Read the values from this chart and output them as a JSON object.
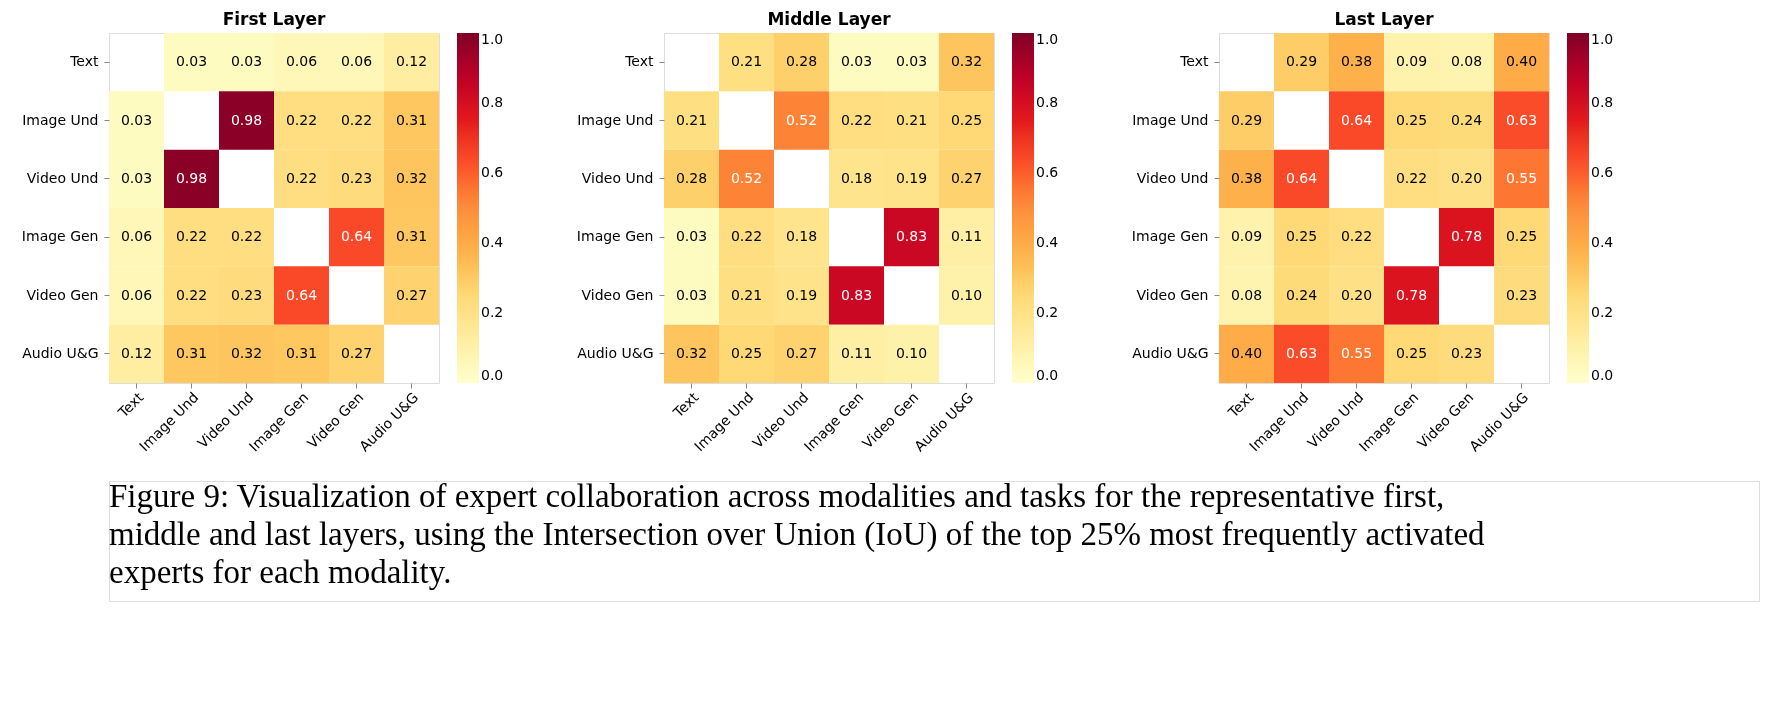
{
  "chart_data": [
    {
      "type": "heatmap",
      "title": "First Layer",
      "categories": [
        "Text",
        "Image Und",
        "Video Und",
        "Image Gen",
        "Video Gen",
        "Audio U&G"
      ],
      "y_categories": [
        "Text",
        "Image Und",
        "Video Und",
        "Image Gen",
        "Video Gen",
        "Audio U&G"
      ],
      "cells": [
        [
          null,
          0.03,
          0.03,
          0.06,
          0.06,
          0.12
        ],
        [
          0.03,
          null,
          0.98,
          0.22,
          0.22,
          0.31
        ],
        [
          0.03,
          0.98,
          null,
          0.22,
          0.23,
          0.32
        ],
        [
          0.06,
          0.22,
          0.22,
          null,
          0.64,
          0.31
        ],
        [
          0.06,
          0.22,
          0.23,
          0.64,
          null,
          0.27
        ],
        [
          0.12,
          0.31,
          0.32,
          0.31,
          0.27,
          null
        ]
      ],
      "cell_labels": [
        [
          null,
          "0.03",
          "0.03",
          "0.06",
          "0.06",
          "0.12"
        ],
        [
          "0.03",
          null,
          "0.98",
          "0.22",
          "0.22",
          "0.31"
        ],
        [
          "0.03",
          "0.98",
          null,
          "0.22",
          "0.23",
          "0.32"
        ],
        [
          "0.06",
          "0.22",
          "0.22",
          null,
          "0.64",
          "0.31"
        ],
        [
          "0.06",
          "0.22",
          "0.23",
          "0.64",
          null,
          "0.27"
        ],
        [
          "0.12",
          "0.31",
          "0.32",
          "0.31",
          "0.27",
          null
        ]
      ],
      "clim": [
        0,
        1
      ],
      "cticks": [
        {
          "value": 0,
          "label": "0.0"
        },
        {
          "value": 0.2,
          "label": "0.2"
        },
        {
          "value": 0.4,
          "label": "0.4"
        },
        {
          "value": 0.6,
          "label": "0.6"
        },
        {
          "value": 0.8,
          "label": "0.8"
        },
        {
          "value": 1,
          "label": "1.0"
        }
      ],
      "data_labels": true,
      "annotations": [
        "Figure 9: Visualization of expert collaboration across modalities and tasks for the representative first, middle and last layers, using the Intersection over Union (IoU) of the top 25% most frequently activated experts for each modality."
      ]
    },
    {
      "type": "heatmap",
      "title": "Middle Layer",
      "categories": [
        "Text",
        "Image Und",
        "Video Und",
        "Image Gen",
        "Video Gen",
        "Audio U&G"
      ],
      "y_categories": [
        "Text",
        "Image Und",
        "Video Und",
        "Image Gen",
        "Video Gen",
        "Audio U&G"
      ],
      "cells": [
        [
          null,
          0.21,
          0.28,
          0.03,
          0.03,
          0.32
        ],
        [
          0.21,
          null,
          0.52,
          0.22,
          0.21,
          0.25
        ],
        [
          0.28,
          0.52,
          null,
          0.18,
          0.19,
          0.27
        ],
        [
          0.03,
          0.22,
          0.18,
          null,
          0.83,
          0.11
        ],
        [
          0.03,
          0.21,
          0.19,
          0.83,
          null,
          0.1
        ],
        [
          0.32,
          0.25,
          0.27,
          0.11,
          0.1,
          null
        ]
      ],
      "cell_labels": [
        [
          null,
          "0.21",
          "0.28",
          "0.03",
          "0.03",
          "0.32"
        ],
        [
          "0.21",
          null,
          "0.52",
          "0.22",
          "0.21",
          "0.25"
        ],
        [
          "0.28",
          "0.52",
          null,
          "0.18",
          "0.19",
          "0.27"
        ],
        [
          "0.03",
          "0.22",
          "0.18",
          null,
          "0.83",
          "0.11"
        ],
        [
          "0.03",
          "0.21",
          "0.19",
          "0.83",
          null,
          "0.10"
        ],
        [
          "0.32",
          "0.25",
          "0.27",
          "0.11",
          "0.10",
          null
        ]
      ],
      "clim": [
        0,
        1
      ],
      "cticks": [
        {
          "value": 0,
          "label": "0.0"
        },
        {
          "value": 0.2,
          "label": "0.2"
        },
        {
          "value": 0.4,
          "label": "0.4"
        },
        {
          "value": 0.6,
          "label": "0.6"
        },
        {
          "value": 0.8,
          "label": "0.8"
        },
        {
          "value": 1,
          "label": "1.0"
        }
      ],
      "data_labels": true
    },
    {
      "type": "heatmap",
      "title": "Last Layer",
      "categories": [
        "Text",
        "Image Und",
        "Video Und",
        "Image Gen",
        "Video Gen",
        "Audio U&G"
      ],
      "y_categories": [
        "Text",
        "Image Und",
        "Video Und",
        "Image Gen",
        "Video Gen",
        "Audio U&G"
      ],
      "cells": [
        [
          null,
          0.29,
          0.38,
          0.09,
          0.08,
          0.4
        ],
        [
          0.29,
          null,
          0.64,
          0.25,
          0.24,
          0.63
        ],
        [
          0.38,
          0.64,
          null,
          0.22,
          0.2,
          0.55
        ],
        [
          0.09,
          0.25,
          0.22,
          null,
          0.78,
          0.25
        ],
        [
          0.08,
          0.24,
          0.2,
          0.78,
          null,
          0.23
        ],
        [
          0.4,
          0.63,
          0.55,
          0.25,
          0.23,
          null
        ]
      ],
      "cell_labels": [
        [
          null,
          "0.29",
          "0.38",
          "0.09",
          "0.08",
          "0.40"
        ],
        [
          "0.29",
          null,
          "0.64",
          "0.25",
          "0.24",
          "0.63"
        ],
        [
          "0.38",
          "0.64",
          null,
          "0.22",
          "0.20",
          "0.55"
        ],
        [
          "0.09",
          "0.25",
          "0.22",
          null,
          "0.78",
          "0.25"
        ],
        [
          "0.08",
          "0.24",
          "0.20",
          "0.78",
          null,
          "0.23"
        ],
        [
          "0.40",
          "0.63",
          "0.55",
          "0.25",
          "0.23",
          null
        ]
      ],
      "clim": [
        0,
        1
      ],
      "cticks": [
        {
          "value": 0,
          "label": "0.0"
        },
        {
          "value": 0.2,
          "label": "0.2"
        },
        {
          "value": 0.4,
          "label": "0.4"
        },
        {
          "value": 0.6,
          "label": "0.6"
        },
        {
          "value": 0.8,
          "label": "0.8"
        },
        {
          "value": 1,
          "label": "1.0"
        }
      ],
      "data_labels": true
    }
  ]
}
